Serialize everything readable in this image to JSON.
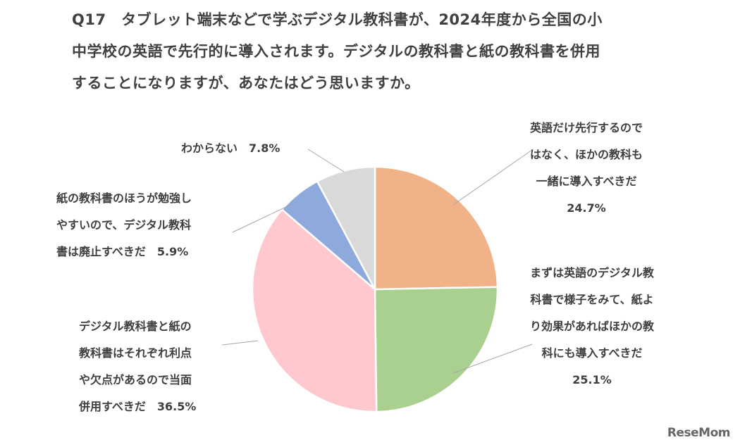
{
  "question": {
    "lines": [
      "Q17　タブレット端末などで学ぶデジタル教科書が、2024年度から全国の小",
      "中学校の英語で先行的に導入されます。デジタルの教科書と紙の教科書を併用",
      "することになりますが、あなたはどう思いますか。"
    ]
  },
  "chart_data": {
    "type": "pie",
    "start": "12 o'clock",
    "direction": "clockwise",
    "slices": [
      {
        "lines": [
          "英語だけ先行するので",
          "はなく、ほかの教科も",
          "一緒に導入すべきだ"
        ],
        "value_label": "24.7%",
        "value": 24.7,
        "color": "#F2B287"
      },
      {
        "lines": [
          "まずは英語のデジタル教",
          "科書で様子をみて、紙よ",
          "り効果があればほかの教",
          "科にも導入すべきだ"
        ],
        "value_label": "25.1%",
        "value": 25.1,
        "color": "#A9D08E"
      },
      {
        "lines": [
          "デジタル教科書と紙の",
          "教科書はそれぞれ利点",
          "や欠点があるので当面",
          "併用すべきだ　36.5%"
        ],
        "value": 36.5,
        "color": "#FFC7CE"
      },
      {
        "lines": [
          "紙の教科書のほうが勉強し",
          "やすいので、デジタル教科",
          "書は廃止すべきだ　5.9%"
        ],
        "value": 5.9,
        "color": "#8EA9DB"
      },
      {
        "lines": [
          "わからない　7.8%"
        ],
        "value": 7.8,
        "color": "#D9D9D9"
      }
    ]
  },
  "branding": {
    "logo": "ReseMom"
  }
}
